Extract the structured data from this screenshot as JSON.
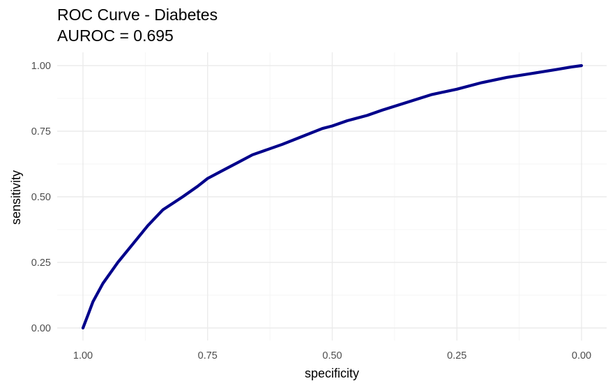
{
  "chart_data": {
    "type": "line",
    "title": "ROC Curve - Diabetes",
    "subtitle": "AUROC = 0.695",
    "xlabel": "specificity",
    "ylabel": "sensitivity",
    "x_reversed": true,
    "xlim": [
      1.0,
      0.0
    ],
    "ylim": [
      0.0,
      1.0
    ],
    "x_ticks": [
      1.0,
      0.75,
      0.5,
      0.25,
      0.0
    ],
    "x_tick_labels": [
      "1.00",
      "0.75",
      "0.50",
      "0.25",
      "0.00"
    ],
    "y_ticks": [
      0.0,
      0.25,
      0.5,
      0.75,
      1.0
    ],
    "y_tick_labels": [
      "0.00",
      "0.25",
      "0.50",
      "0.75",
      "1.00"
    ],
    "grid": true,
    "line_color": "#00008b",
    "series": [
      {
        "x": [
          1.0,
          0.99,
          0.98,
          0.96,
          0.93,
          0.9,
          0.87,
          0.84,
          0.8,
          0.77,
          0.75,
          0.72,
          0.69,
          0.66,
          0.63,
          0.6,
          0.56,
          0.52,
          0.5,
          0.47,
          0.43,
          0.4,
          0.35,
          0.3,
          0.25,
          0.2,
          0.15,
          0.1,
          0.05,
          0.02,
          0.0
        ],
        "y": [
          0.0,
          0.05,
          0.1,
          0.17,
          0.25,
          0.32,
          0.39,
          0.45,
          0.5,
          0.54,
          0.57,
          0.6,
          0.63,
          0.66,
          0.68,
          0.7,
          0.73,
          0.76,
          0.77,
          0.79,
          0.81,
          0.83,
          0.86,
          0.89,
          0.91,
          0.935,
          0.955,
          0.97,
          0.985,
          0.995,
          1.0
        ]
      }
    ]
  }
}
